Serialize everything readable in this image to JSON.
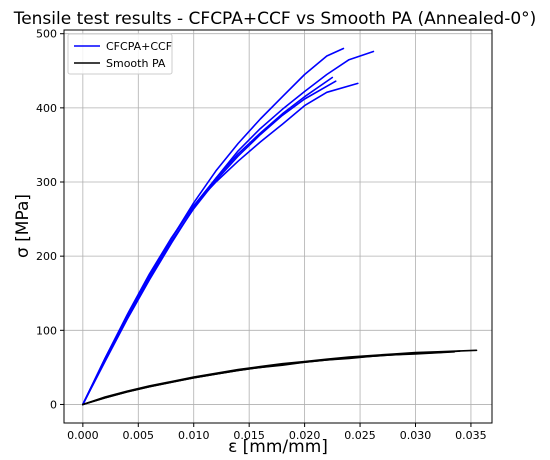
{
  "chart_data": {
    "type": "line",
    "title": "Tensile test results - CFCPA+CCF vs Smooth PA (Annealed-0°)",
    "xlabel": "ε [mm/mm]",
    "ylabel": "σ [MPa]",
    "xlim": [
      -0.0017,
      0.0369
    ],
    "ylim": [
      -25,
      505
    ],
    "xticks": [
      0.0,
      0.005,
      0.01,
      0.015,
      0.02,
      0.025,
      0.03,
      0.035
    ],
    "xtick_labels": [
      "0.000",
      "0.005",
      "0.010",
      "0.015",
      "0.020",
      "0.025",
      "0.030",
      "0.035"
    ],
    "yticks": [
      0,
      100,
      200,
      300,
      400,
      500
    ],
    "ytick_labels": [
      "0",
      "100",
      "200",
      "300",
      "400",
      "500"
    ],
    "grid": true,
    "legend_position": "top-left",
    "legend": [
      {
        "label": "CFCPA+CCF",
        "color": "#0000ff"
      },
      {
        "label": "Smooth PA",
        "color": "#000000"
      }
    ],
    "series": [
      {
        "name": "CFCPA+CCF",
        "color": "#0000ff",
        "x": [
          0,
          0.002,
          0.004,
          0.006,
          0.008,
          0.01,
          0.012,
          0.014,
          0.016,
          0.018,
          0.02,
          0.022,
          0.0235
        ],
        "y": [
          0,
          60,
          118,
          172,
          224,
          272,
          315,
          352,
          385,
          415,
          445,
          470,
          480
        ]
      },
      {
        "name": "CFCPA+CCF",
        "color": "#0000ff",
        "x": [
          0,
          0.002,
          0.004,
          0.006,
          0.008,
          0.01,
          0.012,
          0.014,
          0.016,
          0.018,
          0.02,
          0.022,
          0.024,
          0.0262
        ],
        "y": [
          0,
          58,
          115,
          168,
          218,
          265,
          305,
          342,
          372,
          398,
          422,
          445,
          465,
          476
        ]
      },
      {
        "name": "CFCPA+CCF",
        "color": "#0000ff",
        "x": [
          0,
          0.002,
          0.004,
          0.006,
          0.008,
          0.01,
          0.012,
          0.014,
          0.016,
          0.018,
          0.02,
          0.0225
        ],
        "y": [
          0,
          62,
          120,
          174,
          224,
          268,
          305,
          338,
          366,
          392,
          415,
          441
        ]
      },
      {
        "name": "CFCPA+CCF",
        "color": "#0000ff",
        "x": [
          0,
          0.002,
          0.004,
          0.006,
          0.008,
          0.01,
          0.012,
          0.014,
          0.016,
          0.018,
          0.02,
          0.0228
        ],
        "y": [
          0,
          60,
          118,
          170,
          220,
          264,
          302,
          335,
          364,
          390,
          412,
          436
        ]
      },
      {
        "name": "CFCPA+CCF",
        "color": "#0000ff",
        "x": [
          0,
          0.002,
          0.004,
          0.006,
          0.008,
          0.01,
          0.012,
          0.014,
          0.016,
          0.018,
          0.02,
          0.022,
          0.0248
        ],
        "y": [
          0,
          62,
          121,
          176,
          225,
          268,
          300,
          328,
          354,
          378,
          403,
          421,
          433
        ]
      },
      {
        "name": "Smooth PA",
        "color": "#000000",
        "x": [
          0,
          0.002,
          0.004,
          0.006,
          0.008,
          0.01,
          0.012,
          0.014,
          0.016,
          0.018,
          0.02,
          0.022,
          0.024,
          0.026,
          0.028,
          0.03,
          0.032,
          0.034
        ],
        "y": [
          0,
          9,
          17,
          24,
          30,
          36,
          41,
          46,
          50,
          54,
          57,
          60,
          63,
          65,
          67,
          69,
          70,
          72
        ]
      },
      {
        "name": "Smooth PA",
        "color": "#000000",
        "x": [
          0,
          0.002,
          0.004,
          0.006,
          0.008,
          0.01,
          0.012,
          0.014,
          0.016,
          0.018,
          0.02,
          0.022,
          0.024,
          0.026,
          0.028,
          0.03,
          0.032,
          0.0355
        ],
        "y": [
          0,
          10,
          18,
          25,
          31,
          37,
          42,
          47,
          51,
          55,
          58,
          61,
          64,
          66,
          68,
          70,
          71,
          73
        ]
      },
      {
        "name": "Smooth PA",
        "color": "#000000",
        "x": [
          0,
          0.002,
          0.004,
          0.006,
          0.008,
          0.01,
          0.012,
          0.014,
          0.016,
          0.018,
          0.02,
          0.022,
          0.024,
          0.026,
          0.028,
          0.03,
          0.0335
        ],
        "y": [
          0,
          9,
          17,
          24,
          30,
          36,
          41,
          46,
          50,
          53,
          57,
          60,
          62,
          65,
          67,
          68,
          71
        ]
      }
    ]
  }
}
